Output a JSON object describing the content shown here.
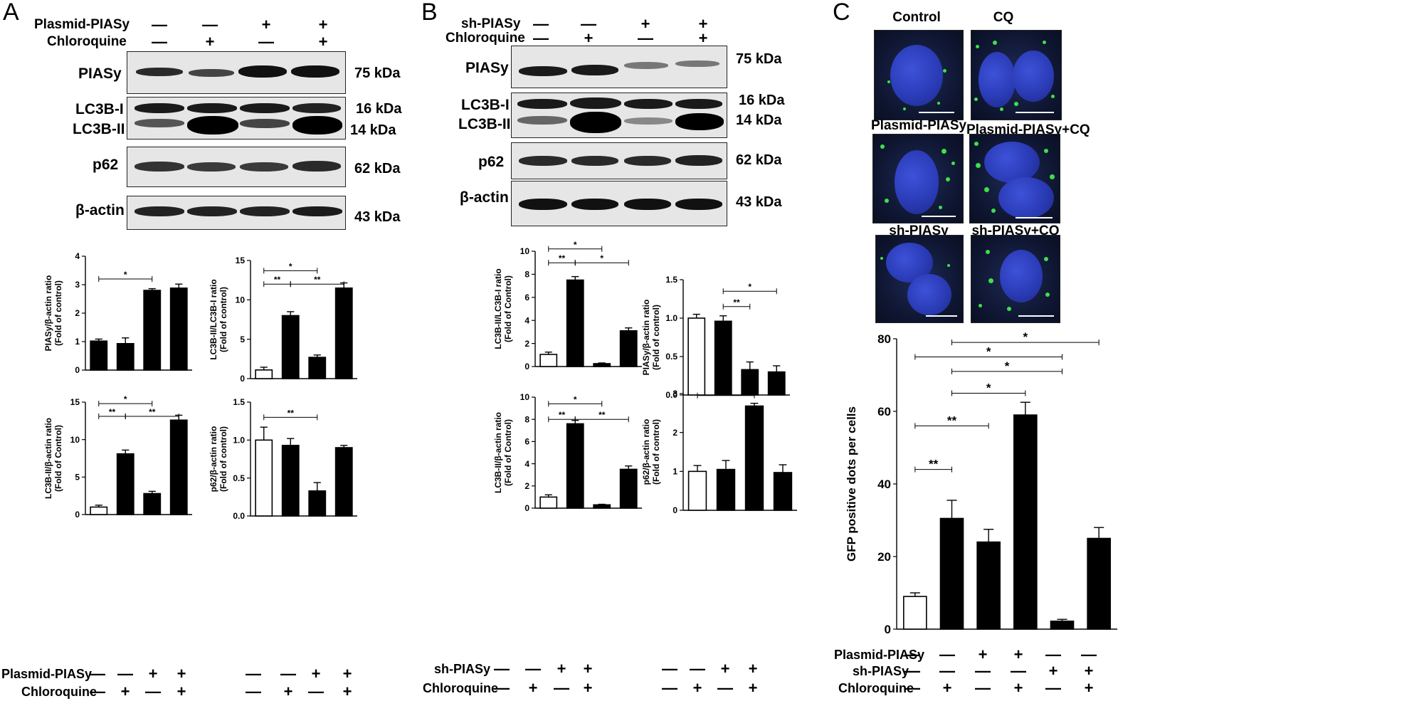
{
  "panels": {
    "A": {
      "letter": "A",
      "header_rows": [
        {
          "label": "Plasmid-PIASy",
          "signs": [
            "—",
            "—",
            "+",
            "+"
          ]
        },
        {
          "label": "Chloroquine",
          "signs": [
            "—",
            "+",
            "—",
            "+"
          ]
        }
      ],
      "blots": [
        {
          "label": "PIASy",
          "kda": "75 kDa"
        },
        {
          "label": "LC3B-I",
          "kda": "16 kDa"
        },
        {
          "label": "LC3B-II",
          "kda": "14 kDa"
        },
        {
          "label": "p62",
          "kda": "62 kDa"
        },
        {
          "label": "β-actin",
          "kda": "43 kDa"
        }
      ],
      "footer_rows": [
        {
          "label": "Plasmid-PIASy",
          "signs": [
            "—",
            "—",
            "+",
            "+"
          ]
        },
        {
          "label": "Chloroquine",
          "signs": [
            "—",
            "+",
            "—",
            "+"
          ]
        }
      ]
    },
    "B": {
      "letter": "B",
      "header_rows": [
        {
          "label": "sh-PIASy",
          "signs": [
            "—",
            "—",
            "+",
            "+"
          ]
        },
        {
          "label": "Chloroquine",
          "signs": [
            "—",
            "+",
            "—",
            "+"
          ]
        }
      ],
      "blots": [
        {
          "label": "PIASy",
          "kda": "75 kDa"
        },
        {
          "label": "LC3B-I",
          "kda": "16 kDa"
        },
        {
          "label": "LC3B-II",
          "kda": "14 kDa"
        },
        {
          "label": "p62",
          "kda": "62 kDa"
        },
        {
          "label": "β-actin",
          "kda": "43 kDa"
        }
      ],
      "footer_rows": [
        {
          "label": "sh-PIASy",
          "signs": [
            "—",
            "—",
            "+",
            "+"
          ]
        },
        {
          "label": "Chloroquine",
          "signs": [
            "—",
            "+",
            "—",
            "+"
          ]
        }
      ]
    },
    "C": {
      "letter": "C",
      "image_captions": [
        "Control",
        "CQ",
        "Plasmid-PIASy",
        "Plasmid-PIASy+CQ",
        "sh-PIASy",
        "sh-PIASy+CQ"
      ],
      "footer_rows": [
        {
          "label": "Plasmid-PIASy",
          "signs": [
            "—",
            "—",
            "+",
            "+",
            "—",
            "—"
          ]
        },
        {
          "label": "sh-PIASy",
          "signs": [
            "—",
            "—",
            "—",
            "—",
            "+",
            "+"
          ]
        },
        {
          "label": "Chloroquine",
          "signs": [
            "—",
            "+",
            "—",
            "+",
            "—",
            "+"
          ]
        }
      ]
    }
  },
  "colors": {
    "bar_control": "#ffffff",
    "bar_treated": "#000000",
    "gfp_dot": "#3ee04a",
    "nucleus": "#2b3cb8"
  },
  "chart_data": [
    {
      "id": "A1",
      "type": "bar",
      "ylabel": [
        "PIASy/β-actin ratio",
        "(Fold of control)"
      ],
      "yticks": [
        "0",
        "1",
        "2",
        "3",
        "4"
      ],
      "ylim": [
        0,
        4
      ],
      "values": [
        1.02,
        0.93,
        2.8,
        2.88
      ],
      "errors": [
        0.07,
        0.2,
        0.06,
        0.14
      ],
      "fills": [
        "#000000",
        "#000000",
        "#000000",
        "#000000"
      ],
      "sig": [
        {
          "from": 0,
          "to": 2,
          "label": "*",
          "y": 3.2
        }
      ]
    },
    {
      "id": "A2",
      "type": "bar",
      "ylabel": [
        "LC3B-II/LC3B-I ratio",
        "(Fold of control)"
      ],
      "yticks": [
        "0",
        "5",
        "10",
        "15"
      ],
      "ylim": [
        0,
        15
      ],
      "values": [
        1.1,
        8.0,
        2.7,
        11.5
      ],
      "errors": [
        0.35,
        0.5,
        0.3,
        0.65
      ],
      "fills": [
        "#ffffff",
        "#000000",
        "#000000",
        "#000000"
      ],
      "sig": [
        {
          "from": 0,
          "to": 2,
          "label": "*",
          "y": 13.7
        },
        {
          "from": 0,
          "to": 1,
          "label": "**",
          "y": 12.0
        },
        {
          "from": 1,
          "to": 3,
          "label": "**",
          "y": 12.0
        }
      ]
    },
    {
      "id": "A3",
      "type": "bar",
      "ylabel": [
        "LC3B-II/β-actin ratio",
        "(Fold of Control)"
      ],
      "yticks": [
        "0",
        "5",
        "10",
        "15"
      ],
      "ylim": [
        0,
        15
      ],
      "values": [
        1.0,
        8.1,
        2.8,
        12.6
      ],
      "errors": [
        0.25,
        0.5,
        0.3,
        0.65
      ],
      "fills": [
        "#ffffff",
        "#000000",
        "#000000",
        "#000000"
      ],
      "sig": [
        {
          "from": 0,
          "to": 2,
          "label": "*",
          "y": 14.8
        },
        {
          "from": 0,
          "to": 1,
          "label": "**",
          "y": 13.1
        },
        {
          "from": 1,
          "to": 3,
          "label": "**",
          "y": 13.1
        }
      ]
    },
    {
      "id": "A4",
      "type": "bar",
      "ylabel": [
        "p62/β-actin ratio",
        "(Fold of control)"
      ],
      "yticks": [
        "0.0",
        "0.5",
        "1.0",
        "1.5"
      ],
      "ylim": [
        0,
        1.5
      ],
      "values": [
        1.0,
        0.93,
        0.33,
        0.9
      ],
      "errors": [
        0.17,
        0.09,
        0.11,
        0.03
      ],
      "fills": [
        "#ffffff",
        "#000000",
        "#000000",
        "#000000"
      ],
      "sig": [
        {
          "from": 0,
          "to": 2,
          "label": "**",
          "y": 1.3
        }
      ]
    },
    {
      "id": "B1",
      "type": "bar",
      "ylabel": [
        "LC3B-II/LC3B-I ratio",
        "(Fold of Control)"
      ],
      "yticks": [
        "0",
        "2",
        "4",
        "6",
        "8",
        "10"
      ],
      "ylim": [
        0,
        10
      ],
      "values": [
        1.05,
        7.5,
        0.25,
        3.1
      ],
      "errors": [
        0.2,
        0.3,
        0.06,
        0.25
      ],
      "fills": [
        "#ffffff",
        "#000000",
        "#000000",
        "#000000"
      ],
      "sig": [
        {
          "from": 0,
          "to": 2,
          "label": "*",
          "y": 10.2
        },
        {
          "from": 0,
          "to": 1,
          "label": "**",
          "y": 9.0
        },
        {
          "from": 1,
          "to": 3,
          "label": "*",
          "y": 9.0
        }
      ]
    },
    {
      "id": "B2",
      "type": "bar",
      "ylabel": [
        "PIASy/β-actin ratio",
        "(Fold of control)"
      ],
      "yticks": [
        "0.0",
        "0.5",
        "1.0",
        "1.5"
      ],
      "ylim": [
        0,
        1.5
      ],
      "values": [
        1.0,
        0.96,
        0.33,
        0.3
      ],
      "errors": [
        0.05,
        0.07,
        0.1,
        0.08
      ],
      "fills": [
        "#ffffff",
        "#000000",
        "#000000",
        "#000000"
      ],
      "sig": [
        {
          "from": 1,
          "to": 3,
          "label": "*",
          "y": 1.35
        },
        {
          "from": 1,
          "to": 2,
          "label": "**",
          "y": 1.15
        }
      ]
    },
    {
      "id": "B3",
      "type": "bar",
      "ylabel": [
        "LC3B-II/β-actin ratio",
        "(Fold of Control)"
      ],
      "yticks": [
        "0",
        "2",
        "4",
        "6",
        "8",
        "10"
      ],
      "ylim": [
        0,
        10
      ],
      "values": [
        1.0,
        7.6,
        0.3,
        3.5
      ],
      "errors": [
        0.2,
        0.3,
        0.05,
        0.3
      ],
      "fills": [
        "#ffffff",
        "#000000",
        "#000000",
        "#000000"
      ],
      "sig": [
        {
          "from": 0,
          "to": 2,
          "label": "*",
          "y": 9.4
        },
        {
          "from": 0,
          "to": 1,
          "label": "**",
          "y": 8.0
        },
        {
          "from": 1,
          "to": 3,
          "label": "**",
          "y": 8.0
        }
      ]
    },
    {
      "id": "B4",
      "type": "bar",
      "ylabel": [
        "p62/β-actin ratio",
        "(Fold of control)"
      ],
      "yticks": [
        "0",
        "1",
        "2",
        "3"
      ],
      "ylim": [
        0,
        3
      ],
      "values": [
        1.0,
        1.05,
        2.68,
        0.97
      ],
      "errors": [
        0.15,
        0.23,
        0.07,
        0.2
      ],
      "fills": [
        "#ffffff",
        "#000000",
        "#000000",
        "#000000"
      ],
      "sig": [
        {
          "from": 0,
          "to": 2,
          "label": "**",
          "y": 2.95
        }
      ]
    },
    {
      "id": "C1",
      "type": "bar",
      "ylabel": [
        "GFP positive dots per cells"
      ],
      "yticks": [
        "0",
        "20",
        "40",
        "60",
        "80"
      ],
      "ylim": [
        0,
        80
      ],
      "values": [
        9.0,
        30.5,
        24.0,
        59.0,
        2.2,
        25.0
      ],
      "errors": [
        1.0,
        5.0,
        3.5,
        3.5,
        0.5,
        3.0
      ],
      "fills": [
        "#ffffff",
        "#000000",
        "#000000",
        "#000000",
        "#000000",
        "#000000"
      ],
      "sig": [
        {
          "from": 0,
          "to": 4,
          "label": "*",
          "y": 75
        },
        {
          "from": 1,
          "to": 5,
          "label": "*",
          "y": 79
        },
        {
          "from": 1,
          "to": 4,
          "label": "*",
          "y": 71
        },
        {
          "from": 1,
          "to": 3,
          "label": "*",
          "y": 65
        },
        {
          "from": 0,
          "to": 2,
          "label": "**",
          "y": 56
        },
        {
          "from": 0,
          "to": 1,
          "label": "**",
          "y": 44
        }
      ]
    }
  ]
}
